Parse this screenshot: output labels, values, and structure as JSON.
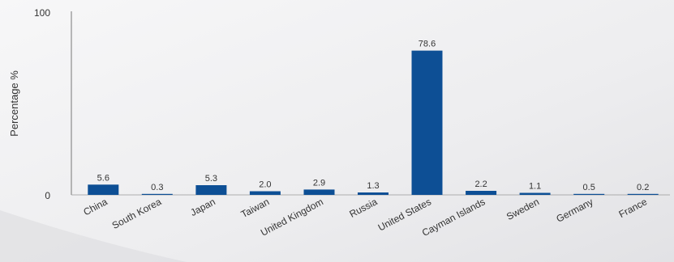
{
  "chart_data": {
    "type": "bar",
    "title": "",
    "xlabel": "",
    "ylabel": "Percentage %",
    "ylim": [
      0,
      100
    ],
    "y_ticks": [
      "0",
      "100"
    ],
    "grid": false,
    "bar_color": "#0d4f95",
    "categories": [
      "China",
      "South Korea",
      "Japan",
      "Taiwan",
      "United Kingdom",
      "Russia",
      "United States",
      "Cayman Islands",
      "Sweden",
      "Germany",
      "France"
    ],
    "values": [
      5.6,
      0.3,
      5.3,
      2.0,
      2.9,
      1.3,
      78.6,
      2.2,
      1.1,
      0.5,
      0.2
    ],
    "value_labels": [
      "5.6",
      "0.3",
      "5.3",
      "2.0",
      "2.9",
      "1.3",
      "78.6",
      "2.2",
      "1.1",
      "0.5",
      "0.2"
    ]
  }
}
